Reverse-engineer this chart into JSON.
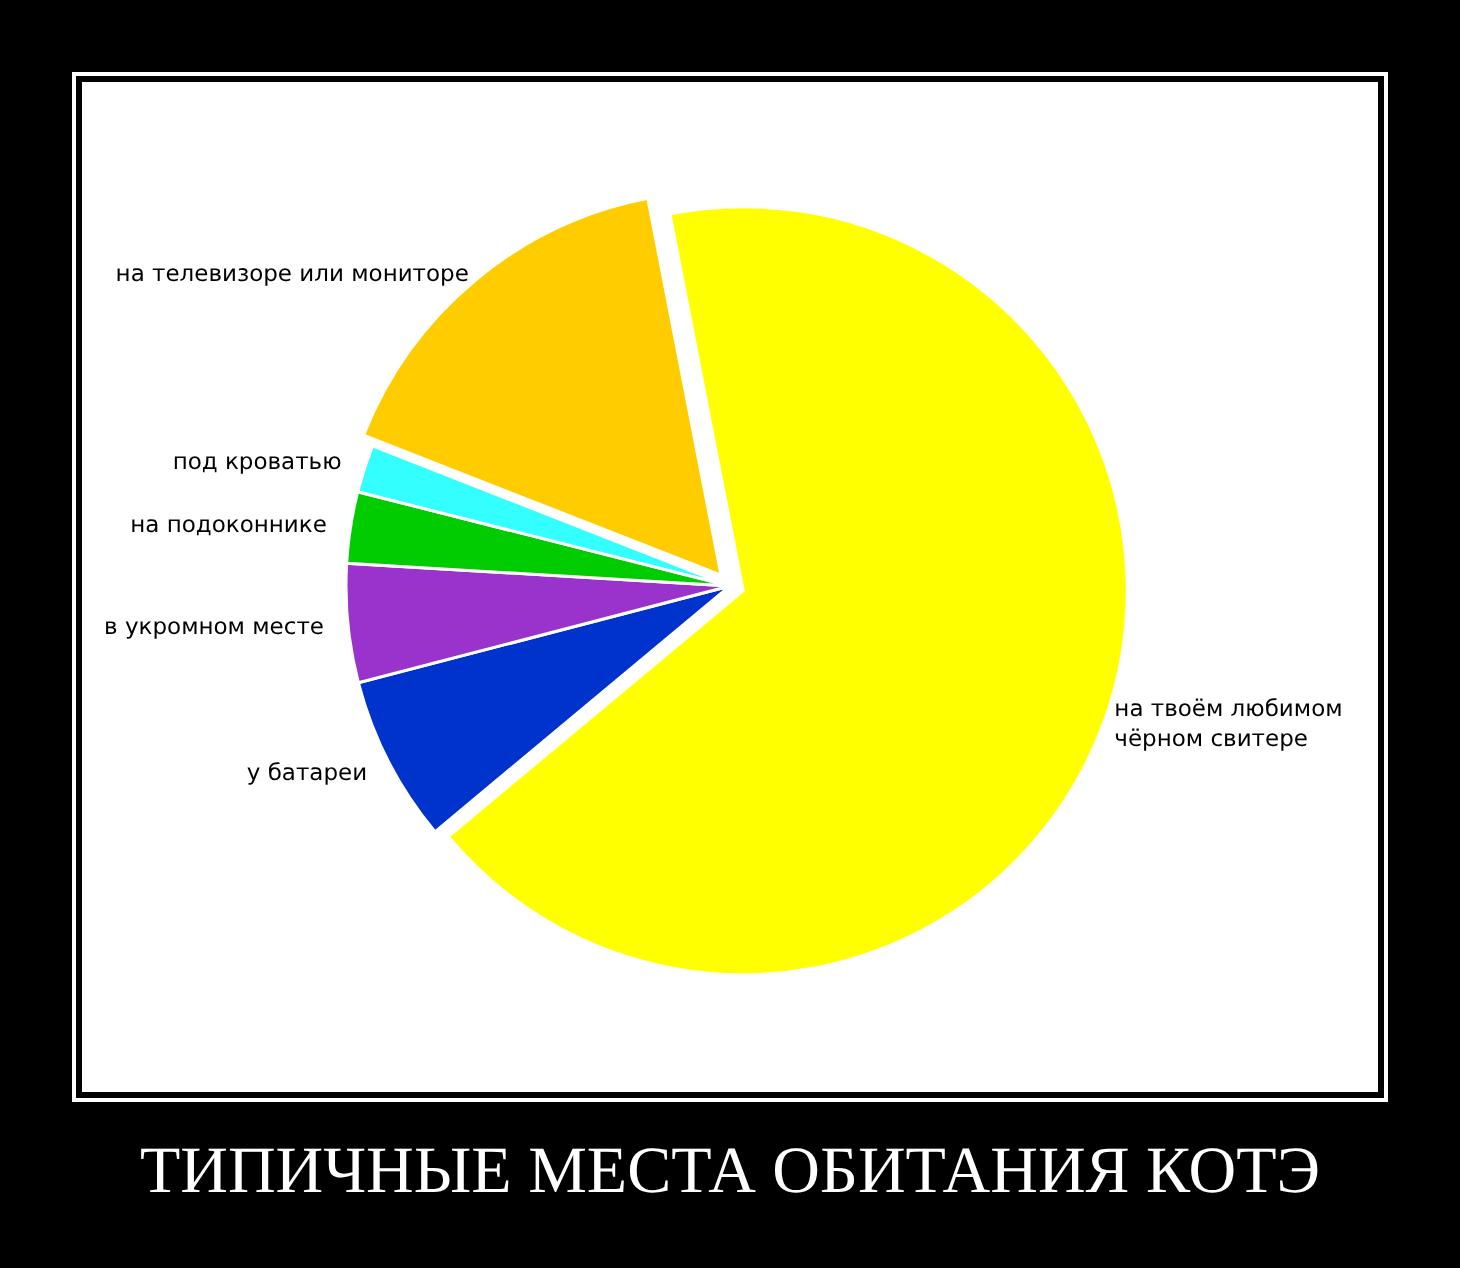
{
  "chart_data": {
    "type": "pie",
    "title": "ТИПИЧНЫЕ МЕСТА ОБИТАНИЯ КОТЭ",
    "categories": [
      "на твоём любимом чёрном свитере",
      "у батареи",
      "в укромном месте",
      "на подоконнике",
      "под кроватью",
      "на телевизоре или мониторе"
    ],
    "values": [
      67,
      7,
      5,
      3,
      2,
      16
    ],
    "colors": [
      "#ffff00",
      "#0033cc",
      "#9933cc",
      "#00cc00",
      "#33ffff",
      "#ffcc00"
    ]
  }
}
